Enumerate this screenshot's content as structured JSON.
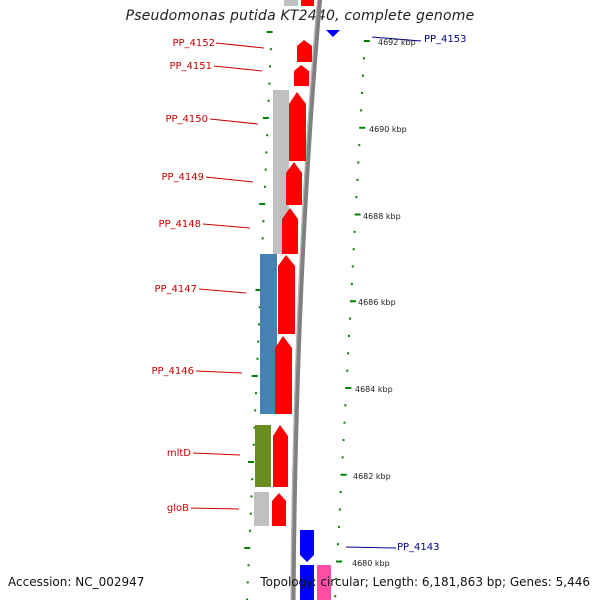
{
  "title": "Pseudomonas putida KT2440, complete genome",
  "footer": {
    "accession": "Accession: NC_002947",
    "topology": "Topology: circular; Length: 6,181,863 bp; Genes: 5,446"
  },
  "colors": {
    "red_label": "#cc0000",
    "blue_label": "#00008b",
    "gene_red": "#ff0000",
    "gene_blue": "#0000ff",
    "gene_pink": "#ff4da6",
    "cog_grey": "#c0c0c0",
    "cog_blue": "#4682b4",
    "cog_green": "#6b8e23",
    "tick_green": "#008000",
    "backbone": "#808080"
  },
  "scale_labels": [
    "4692 kbp",
    "4690 kbp",
    "4688 kbp",
    "4686 kbp",
    "4684 kbp",
    "4682 kbp",
    "4680 kbp"
  ],
  "left_genes": [
    "PP_4152",
    "PP_4151",
    "PP_4150",
    "PP_4149",
    "PP_4148",
    "PP_4147",
    "PP_4146",
    "mltD",
    "gloB"
  ],
  "right_genes": [
    "PP_4153",
    "PP_4143"
  ]
}
